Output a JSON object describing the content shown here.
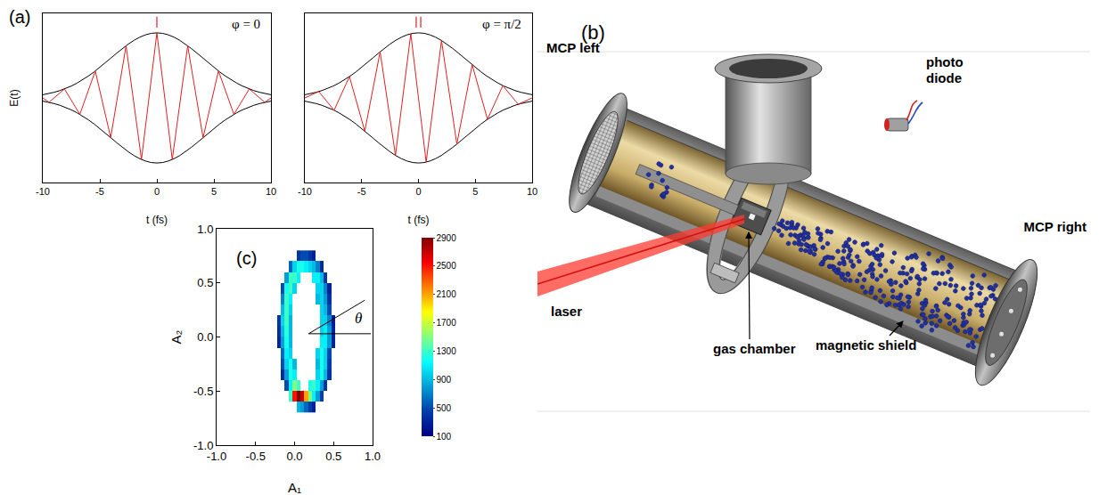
{
  "chart_data": [
    {
      "type": "line",
      "panel_label": "(a)",
      "annotations": [
        "φ = 0"
      ],
      "xlabel": "t (fs)",
      "ylabel": "E(t)",
      "xlim": [
        -10,
        10
      ],
      "xticks": [
        -10,
        -5,
        0,
        5,
        10
      ],
      "ylim": [
        -1.3,
        1.3
      ],
      "tick_labels": "x",
      "series": [
        {
          "color": "#000000",
          "x": [
            -10,
            -9.5,
            -9,
            -8.5,
            -8,
            -7.5,
            -7,
            -6.5,
            -6,
            -5.5,
            -5,
            -4.5,
            -4,
            -3.5,
            -3,
            -2.5,
            -2,
            -1.5,
            -1,
            -0.5,
            0,
            0.5,
            1,
            1.5,
            2,
            2.5,
            3,
            3.5,
            4,
            4.5,
            5,
            5.5,
            6,
            6.5,
            7,
            7.5,
            8,
            8.5,
            9,
            9.5,
            10
          ],
          "values": [
            0.049,
            0.065,
            0.087,
            0.113,
            0.145,
            0.183,
            0.228,
            0.279,
            0.337,
            0.401,
            0.47,
            0.542,
            0.617,
            0.691,
            0.762,
            0.828,
            0.886,
            0.934,
            0.97,
            0.993,
            1,
            0.993,
            0.97,
            0.934,
            0.886,
            0.828,
            0.762,
            0.691,
            0.617,
            0.542,
            0.47,
            0.401,
            0.337,
            0.279,
            0.228,
            0.183,
            0.145,
            0.113,
            0.087,
            0.065,
            0.049
          ]
        },
        {
          "color": "#000000",
          "x": [
            -10,
            -9.5,
            -9,
            -8.5,
            -8,
            -7.5,
            -7,
            -6.5,
            -6,
            -5.5,
            -5,
            -4.5,
            -4,
            -3.5,
            -3,
            -2.5,
            -2,
            -1.5,
            -1,
            -0.5,
            0,
            0.5,
            1,
            1.5,
            2,
            2.5,
            3,
            3.5,
            4,
            4.5,
            5,
            5.5,
            6,
            6.5,
            7,
            7.5,
            8,
            8.5,
            9,
            9.5,
            10
          ],
          "values": [
            -0.049,
            -0.065,
            -0.087,
            -0.113,
            -0.145,
            -0.183,
            -0.228,
            -0.279,
            -0.337,
            -0.401,
            -0.47,
            -0.542,
            -0.617,
            -0.691,
            -0.762,
            -0.828,
            -0.886,
            -0.934,
            -0.97,
            -0.993,
            -1,
            -0.993,
            -0.97,
            -0.934,
            -0.886,
            -0.828,
            -0.762,
            -0.691,
            -0.617,
            -0.542,
            -0.47,
            -0.401,
            -0.337,
            -0.279,
            -0.228,
            -0.183,
            -0.145,
            -0.113,
            -0.087,
            -0.065,
            -0.049
          ]
        },
        {
          "color": "#e02020",
          "x": [
            -10,
            -9.45,
            -8.1,
            -6.75,
            -5.4,
            -4.05,
            -2.7,
            -1.35,
            0,
            1.35,
            2.7,
            4.05,
            5.4,
            6.75,
            8.1,
            9.45,
            10
          ],
          "values": [
            0,
            -0.067,
            0.138,
            -0.252,
            0.414,
            -0.609,
            0.802,
            -0.946,
            1,
            -0.946,
            0.802,
            -0.609,
            0.414,
            -0.252,
            0.138,
            -0.067,
            0
          ]
        }
      ],
      "peak_marks": {
        "x": [
          0
        ],
        "y": [
          1.08,
          1.25
        ],
        "color": "#e02020"
      }
    },
    {
      "type": "line",
      "annotations": [
        "φ = π/2"
      ],
      "xlabel": "t (fs)",
      "xlim": [
        -10,
        10
      ],
      "xticks": [
        -10,
        -5,
        0,
        5,
        10
      ],
      "ylim": [
        -1.3,
        1.3
      ],
      "tick_labels": "x",
      "series": [
        {
          "color": "#000000",
          "x": [
            -10,
            -9.5,
            -9,
            -8.5,
            -8,
            -7.5,
            -7,
            -6.5,
            -6,
            -5.5,
            -5,
            -4.5,
            -4,
            -3.5,
            -3,
            -2.5,
            -2,
            -1.5,
            -1,
            -0.5,
            0,
            0.5,
            1,
            1.5,
            2,
            2.5,
            3,
            3.5,
            4,
            4.5,
            5,
            5.5,
            6,
            6.5,
            7,
            7.5,
            8,
            8.5,
            9,
            9.5,
            10
          ],
          "values": [
            0.049,
            0.065,
            0.087,
            0.113,
            0.145,
            0.183,
            0.228,
            0.279,
            0.337,
            0.401,
            0.47,
            0.542,
            0.617,
            0.691,
            0.762,
            0.828,
            0.886,
            0.934,
            0.97,
            0.993,
            1,
            0.993,
            0.97,
            0.934,
            0.886,
            0.828,
            0.762,
            0.691,
            0.617,
            0.542,
            0.47,
            0.401,
            0.337,
            0.279,
            0.228,
            0.183,
            0.145,
            0.113,
            0.087,
            0.065,
            0.049
          ]
        },
        {
          "color": "#000000",
          "x": [
            -10,
            -9.5,
            -9,
            -8.5,
            -8,
            -7.5,
            -7,
            -6.5,
            -6,
            -5.5,
            -5,
            -4.5,
            -4,
            -3.5,
            -3,
            -2.5,
            -2,
            -1.5,
            -1,
            -0.5,
            0,
            0.5,
            1,
            1.5,
            2,
            2.5,
            3,
            3.5,
            4,
            4.5,
            5,
            5.5,
            6,
            6.5,
            7,
            7.5,
            8,
            8.5,
            9,
            9.5,
            10
          ],
          "values": [
            -0.049,
            -0.065,
            -0.087,
            -0.113,
            -0.145,
            -0.183,
            -0.228,
            -0.279,
            -0.337,
            -0.401,
            -0.47,
            -0.542,
            -0.617,
            -0.691,
            -0.762,
            -0.828,
            -0.886,
            -0.934,
            -0.97,
            -0.993,
            -1,
            -0.993,
            -0.97,
            -0.934,
            -0.886,
            -0.828,
            -0.762,
            -0.691,
            -0.617,
            -0.542,
            -0.47,
            -0.401,
            -0.337,
            -0.279,
            -0.228,
            -0.183,
            -0.145,
            -0.113,
            -0.087,
            -0.065,
            -0.049
          ]
        },
        {
          "color": "#e02020",
          "x": [
            -10,
            -8.775,
            -7.425,
            -6.075,
            -4.725,
            -3.375,
            -2.025,
            -0.675,
            0.675,
            2.025,
            3.375,
            4.725,
            6.075,
            7.425,
            8.775,
            10
          ],
          "values": [
            0,
            0.098,
            -0.189,
            0.328,
            -0.509,
            0.709,
            -0.883,
            0.986,
            -0.986,
            0.883,
            -0.709,
            0.509,
            -0.328,
            0.189,
            -0.098,
            0
          ]
        }
      ],
      "peak_marks": {
        "x": [
          -0.2,
          0.2
        ],
        "y": [
          1.08,
          1.25
        ],
        "color": "#e02020"
      }
    },
    {
      "type": "heatmap",
      "panel_label": "(c)",
      "xlabel": "A₁",
      "ylabel": "A₂",
      "xlim": [
        -1,
        1
      ],
      "ylim": [
        -1,
        1
      ],
      "xticks": [
        {
          "value": -1,
          "label": "-1.0"
        },
        -0.5,
        {
          "value": 0,
          "label": "0.0"
        },
        0.5,
        {
          "value": 1,
          "label": "1.0"
        }
      ],
      "yticks": [
        {
          "value": -1,
          "label": "-1.0"
        },
        -0.5,
        {
          "value": 0,
          "label": "0.0"
        },
        0.5,
        {
          "value": 1,
          "label": "1.0"
        }
      ],
      "color": "Jet",
      "zlim": [
        100,
        2900
      ],
      "zticks": [
        100,
        500,
        900,
        1300,
        1700,
        2100,
        2500,
        2900
      ],
      "x": [
        -0.25,
        -0.2,
        -0.15,
        -0.1,
        -0.05,
        0,
        0.05,
        0.1,
        0.15,
        0.2,
        0.25,
        0.3,
        0.35,
        0.4,
        0.45,
        0.5,
        0.55
      ],
      "y": [
        -0.65,
        -0.55,
        -0.45,
        -0.35,
        -0.25,
        -0.15,
        -0.05,
        0.05,
        0.15,
        0.25,
        0.35,
        0.45,
        0.55,
        0.65,
        0.75
      ],
      "z": [
        [
          null,
          null,
          null,
          null,
          null,
          null,
          900,
          800,
          600,
          450,
          300,
          null,
          null,
          null,
          null,
          null,
          null
        ],
        [
          null,
          null,
          null,
          null,
          1300,
          2500,
          2900,
          2700,
          2100,
          1500,
          1100,
          800,
          450,
          null,
          null,
          null,
          null
        ],
        [
          null,
          null,
          null,
          500,
          1100,
          1500,
          1300,
          null,
          null,
          1200,
          1300,
          1100,
          800,
          400,
          null,
          null,
          null
        ],
        [
          null,
          null,
          350,
          800,
          1200,
          1100,
          null,
          null,
          null,
          null,
          null,
          1000,
          1200,
          900,
          400,
          null,
          null
        ],
        [
          null,
          null,
          500,
          1000,
          1200,
          900,
          null,
          null,
          null,
          null,
          null,
          900,
          1200,
          1000,
          450,
          null,
          null
        ],
        [
          null,
          null,
          600,
          1100,
          1000,
          null,
          null,
          null,
          null,
          null,
          null,
          1000,
          1200,
          1000,
          500,
          null,
          null
        ],
        [
          null,
          300,
          800,
          1200,
          900,
          null,
          null,
          null,
          null,
          null,
          null,
          null,
          1100,
          1100,
          800,
          300,
          null
        ],
        [
          null,
          350,
          900,
          1250,
          900,
          null,
          null,
          null,
          null,
          null,
          null,
          null,
          1000,
          1100,
          800,
          300,
          null
        ],
        [
          null,
          400,
          1000,
          1300,
          900,
          null,
          null,
          null,
          null,
          null,
          null,
          null,
          1000,
          1000,
          700,
          250,
          null
        ],
        [
          null,
          null,
          900,
          1300,
          1000,
          null,
          null,
          null,
          null,
          null,
          null,
          null,
          1000,
          900,
          500,
          null,
          null
        ],
        [
          null,
          null,
          700,
          1300,
          1100,
          null,
          null,
          null,
          null,
          null,
          null,
          900,
          1000,
          800,
          400,
          null,
          null
        ],
        [
          null,
          null,
          500,
          1200,
          1300,
          1000,
          null,
          null,
          null,
          null,
          null,
          1000,
          1000,
          700,
          300,
          null,
          null
        ],
        [
          null,
          null,
          null,
          800,
          1300,
          1300,
          1100,
          null,
          null,
          null,
          1100,
          1100,
          900,
          400,
          null,
          null,
          null
        ],
        [
          null,
          null,
          null,
          null,
          600,
          1000,
          1200,
          1200,
          1100,
          1000,
          900,
          700,
          350,
          null,
          null,
          null,
          null
        ],
        [
          null,
          null,
          null,
          null,
          null,
          null,
          400,
          500,
          500,
          400,
          300,
          null,
          null,
          null,
          null,
          null,
          null
        ]
      ],
      "angle_lines": [
        {
          "x": [
            0.18,
            0.98
          ],
          "y": [
            0.03,
            0.03
          ]
        },
        {
          "x": [
            0.18,
            0.9
          ],
          "y": [
            0.03,
            0.34
          ]
        }
      ],
      "annotations": [
        {
          "text": "θ",
          "x": 0.82,
          "y": 0.17
        }
      ]
    }
  ],
  "diagram": {
    "panel_label": "(b)",
    "labels": {
      "mcp_left": "MCP left",
      "photo_diode": "photo diode",
      "mcp_right": "MCP right",
      "laser": "laser",
      "gas_chamber": "gas chamber",
      "magnetic_shield": "magnetic shield"
    }
  }
}
